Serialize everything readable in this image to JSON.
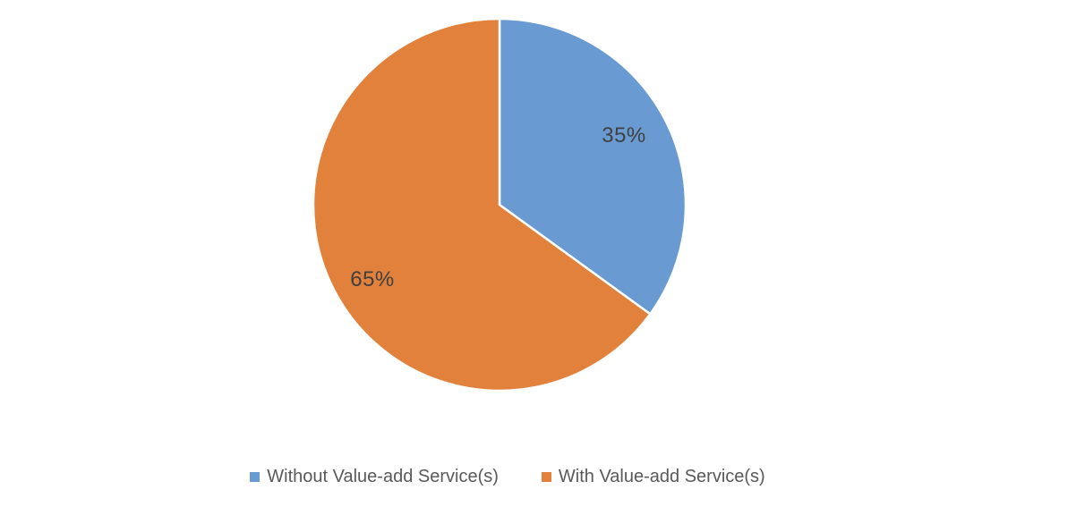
{
  "chart_data": {
    "type": "pie",
    "title": "",
    "categories": [
      "Without Value-add Service(s)",
      "With Value-add Service(s)"
    ],
    "values": [
      35,
      65
    ],
    "slice_labels": [
      "35%",
      "65%"
    ],
    "colors": [
      "#699bd2",
      "#e2813c"
    ],
    "start_angle": "top (12 o'clock)",
    "direction": "clockwise",
    "slice_border_color": "#ffffff",
    "data_label_color": "#404040",
    "legend_position": "bottom",
    "background_color": "#ffffff"
  },
  "legend": {
    "items": [
      {
        "label": "Without Value-add Service(s)",
        "color": "#699bd2"
      },
      {
        "label": "With Value-add Service(s)",
        "color": "#e2813c"
      }
    ],
    "text_color": "#595959"
  }
}
